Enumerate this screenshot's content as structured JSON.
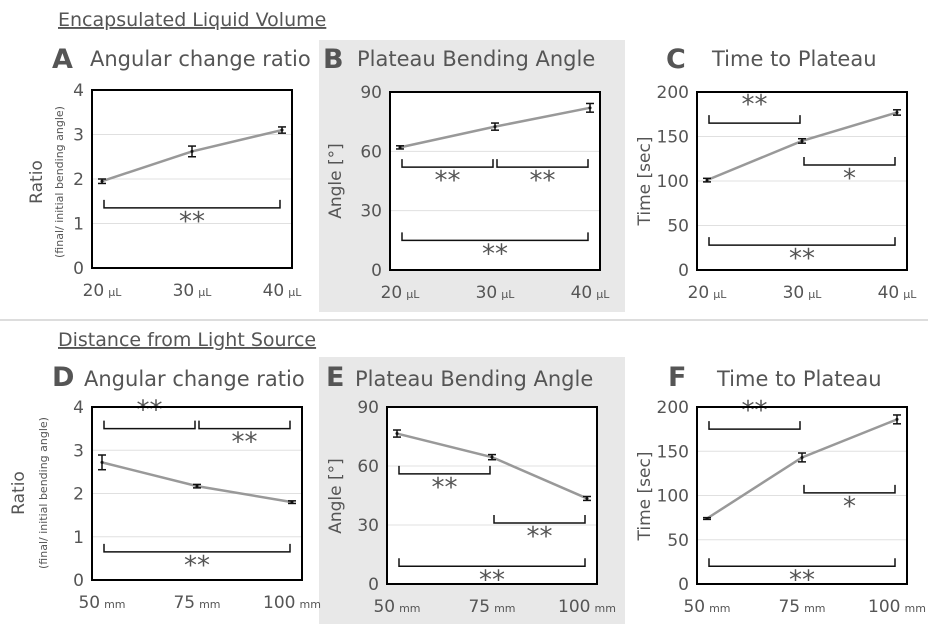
{
  "sections": [
    {
      "title": "Encapsulated Liquid Volume"
    },
    {
      "title": "Distance from Light Source"
    }
  ],
  "colors": {
    "line": "#999999",
    "panel_bg": "#e8e8e8",
    "frame": "#000000",
    "grid": "#e0e0e0",
    "text": "#555555"
  },
  "chart_data": [
    {
      "panel": "A",
      "type": "line",
      "title": "Angular change ratio",
      "ylabel": "Ratio",
      "ylabel_sub": "(final/ initial bending angle)",
      "categories": [
        "20",
        "30",
        "40"
      ],
      "cat_unit": "μL",
      "ylim": [
        0,
        4
      ],
      "yticks": [
        "0",
        "1",
        "2",
        "3",
        "4"
      ],
      "values": [
        1.95,
        2.62,
        3.1
      ],
      "errors": [
        0.05,
        0.12,
        0.07
      ],
      "brackets": [
        {
          "from": 0,
          "to": 2,
          "level": 1.35,
          "label": "**"
        }
      ]
    },
    {
      "panel": "B",
      "type": "line",
      "title": "Plateau Bending Angle",
      "ylabel": "Angle [°]",
      "ylabel_sub": "",
      "categories": [
        "20",
        "30",
        "40"
      ],
      "cat_unit": "μL",
      "ylim": [
        0,
        90
      ],
      "yticks": [
        "0",
        "30",
        "60",
        "90"
      ],
      "values": [
        62,
        72.5,
        82
      ],
      "errors": [
        0.8,
        1.8,
        2.2
      ],
      "brackets": [
        {
          "from": 0,
          "to": 1,
          "level": 52,
          "label": "**"
        },
        {
          "from": 1,
          "to": 2,
          "level": 52,
          "label": "**"
        },
        {
          "from": 0,
          "to": 2,
          "level": 15,
          "label": "**"
        }
      ]
    },
    {
      "panel": "C",
      "type": "line",
      "title": "Time to Plateau",
      "ylabel": "Time [sec]",
      "ylabel_sub": "",
      "categories": [
        "20",
        "30",
        "40"
      ],
      "cat_unit": "μL",
      "ylim": [
        0,
        200
      ],
      "yticks": [
        "0",
        "50",
        "100",
        "150",
        "200"
      ],
      "values": [
        101,
        145,
        177
      ],
      "errors": [
        2,
        2.5,
        3
      ],
      "brackets": [
        {
          "from": 0,
          "to": 1,
          "level": 165,
          "label": "**"
        },
        {
          "from": 1,
          "to": 2,
          "level": 118,
          "label": "*"
        },
        {
          "from": 0,
          "to": 2,
          "level": 28,
          "label": "**"
        }
      ]
    },
    {
      "panel": "D",
      "type": "line",
      "title": "Angular change ratio",
      "ylabel": "Ratio",
      "ylabel_sub": "(final/ initial bending angle)",
      "categories": [
        "50",
        "75",
        "100"
      ],
      "cat_unit": "mm",
      "ylim": [
        0,
        4
      ],
      "yticks": [
        "0",
        "1",
        "2",
        "3",
        "4"
      ],
      "values": [
        2.72,
        2.17,
        1.8
      ],
      "errors": [
        0.17,
        0.04,
        0.03
      ],
      "brackets": [
        {
          "from": 0,
          "to": 1,
          "level": 3.5,
          "label": "**"
        },
        {
          "from": 1,
          "to": 2,
          "level": 3.5,
          "label": "**"
        },
        {
          "from": 0,
          "to": 2,
          "level": 0.65,
          "label": "**"
        }
      ]
    },
    {
      "panel": "E",
      "type": "line",
      "title": "Plateau Bending Angle",
      "ylabel": "Angle [°]",
      "ylabel_sub": "",
      "categories": [
        "50",
        "75",
        "100"
      ],
      "cat_unit": "mm",
      "ylim": [
        0,
        90
      ],
      "yticks": [
        "0",
        "30",
        "60",
        "90"
      ],
      "values": [
        76.5,
        64.5,
        43.5
      ],
      "errors": [
        1.8,
        1.3,
        1
      ],
      "brackets": [
        {
          "from": 0,
          "to": 1,
          "level": 56,
          "label": "**"
        },
        {
          "from": 1,
          "to": 2,
          "level": 31,
          "label": "**"
        },
        {
          "from": 0,
          "to": 2,
          "level": 9,
          "label": "**"
        }
      ]
    },
    {
      "panel": "F",
      "type": "line",
      "title": "Time to Plateau",
      "ylabel": "Time [sec]",
      "ylabel_sub": "",
      "categories": [
        "50",
        "75",
        "100"
      ],
      "cat_unit": "mm",
      "ylim": [
        0,
        200
      ],
      "yticks": [
        "0",
        "50",
        "100",
        "150",
        "200"
      ],
      "values": [
        74,
        143,
        186
      ],
      "errors": [
        1,
        5,
        5
      ],
      "brackets": [
        {
          "from": 0,
          "to": 1,
          "level": 175,
          "label": "**"
        },
        {
          "from": 1,
          "to": 2,
          "level": 103,
          "label": "*"
        },
        {
          "from": 0,
          "to": 2,
          "level": 20,
          "label": "**"
        }
      ]
    }
  ]
}
